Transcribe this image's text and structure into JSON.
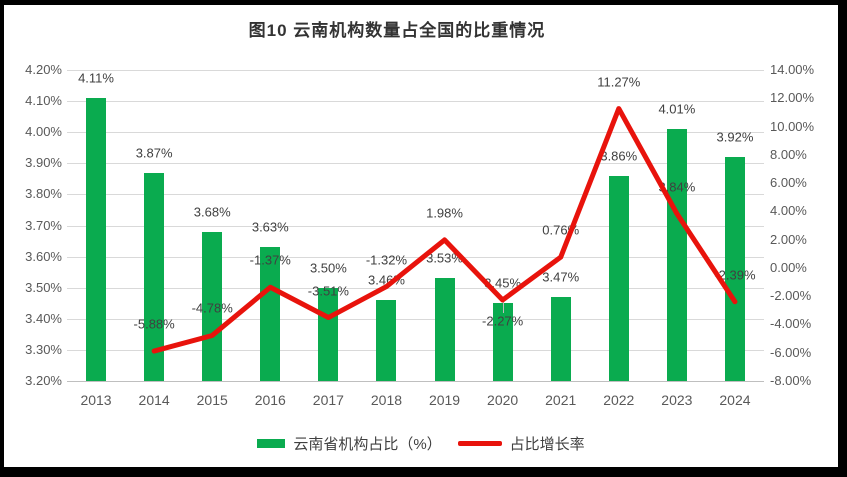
{
  "title": "图10 云南机构数量占全国的比重情况",
  "colors": {
    "bar": "#0AAB4F",
    "line": "#E8130C",
    "gridline": "#D9D9D9",
    "axis_line": "#BFBFBF",
    "tick_text": "#595959",
    "label_text": "#404040",
    "title_text": "#333333",
    "frame": "#000000",
    "background": "#FFFFFF"
  },
  "legend": [
    {
      "label": "云南省机构占比（%）",
      "type": "bar"
    },
    {
      "label": "占比增长率",
      "type": "line"
    }
  ],
  "chart_data": {
    "type": "combo",
    "title": "图10 云南机构数量占全国的比重情况",
    "categories": [
      "2013",
      "2014",
      "2015",
      "2016",
      "2017",
      "2018",
      "2019",
      "2020",
      "2021",
      "2022",
      "2023",
      "2024"
    ],
    "series": [
      {
        "name": "云南省机构占比（%）",
        "type": "bar",
        "axis": "left",
        "values": [
          4.11,
          3.87,
          3.68,
          3.63,
          3.5,
          3.46,
          3.53,
          3.45,
          3.47,
          3.86,
          4.01,
          3.92
        ],
        "labels": [
          "4.11%",
          "3.87%",
          "3.68%",
          "3.63%",
          "3.50%",
          "3.46%",
          "3.53%",
          "3.45%",
          "3.47%",
          "3.86%",
          "4.01%",
          "3.92%"
        ]
      },
      {
        "name": "占比增长率",
        "type": "line",
        "axis": "right",
        "values": [
          null,
          -5.88,
          -4.78,
          -1.37,
          -3.51,
          -1.32,
          1.98,
          -2.27,
          0.76,
          11.27,
          3.84,
          -2.39
        ],
        "labels": [
          null,
          "-5.88%",
          "-4.78%",
          "-1.37%",
          "-3.51%",
          "-1.32%",
          "1.98%",
          "-2.27%",
          "0.76%",
          "11.27%",
          "3.84%",
          "-2.39%"
        ],
        "label_pos": [
          null,
          "above",
          "above",
          "above",
          "above",
          "above",
          "above",
          "below",
          "above",
          "above",
          "above",
          "above"
        ]
      }
    ],
    "left_axis": {
      "min": 3.2,
      "max": 4.2,
      "ticks": [
        "4.20%",
        "4.10%",
        "4.00%",
        "3.90%",
        "3.80%",
        "3.70%",
        "3.60%",
        "3.50%",
        "3.40%",
        "3.30%",
        "3.20%"
      ]
    },
    "right_axis": {
      "min": -8,
      "max": 14,
      "ticks": [
        "14.00%",
        "12.00%",
        "10.00%",
        "8.00%",
        "6.00%",
        "4.00%",
        "2.00%",
        "0.00%",
        "-2.00%",
        "-4.00%",
        "-6.00%",
        "-8.00%"
      ]
    },
    "grid": true,
    "legend_position": "bottom"
  }
}
